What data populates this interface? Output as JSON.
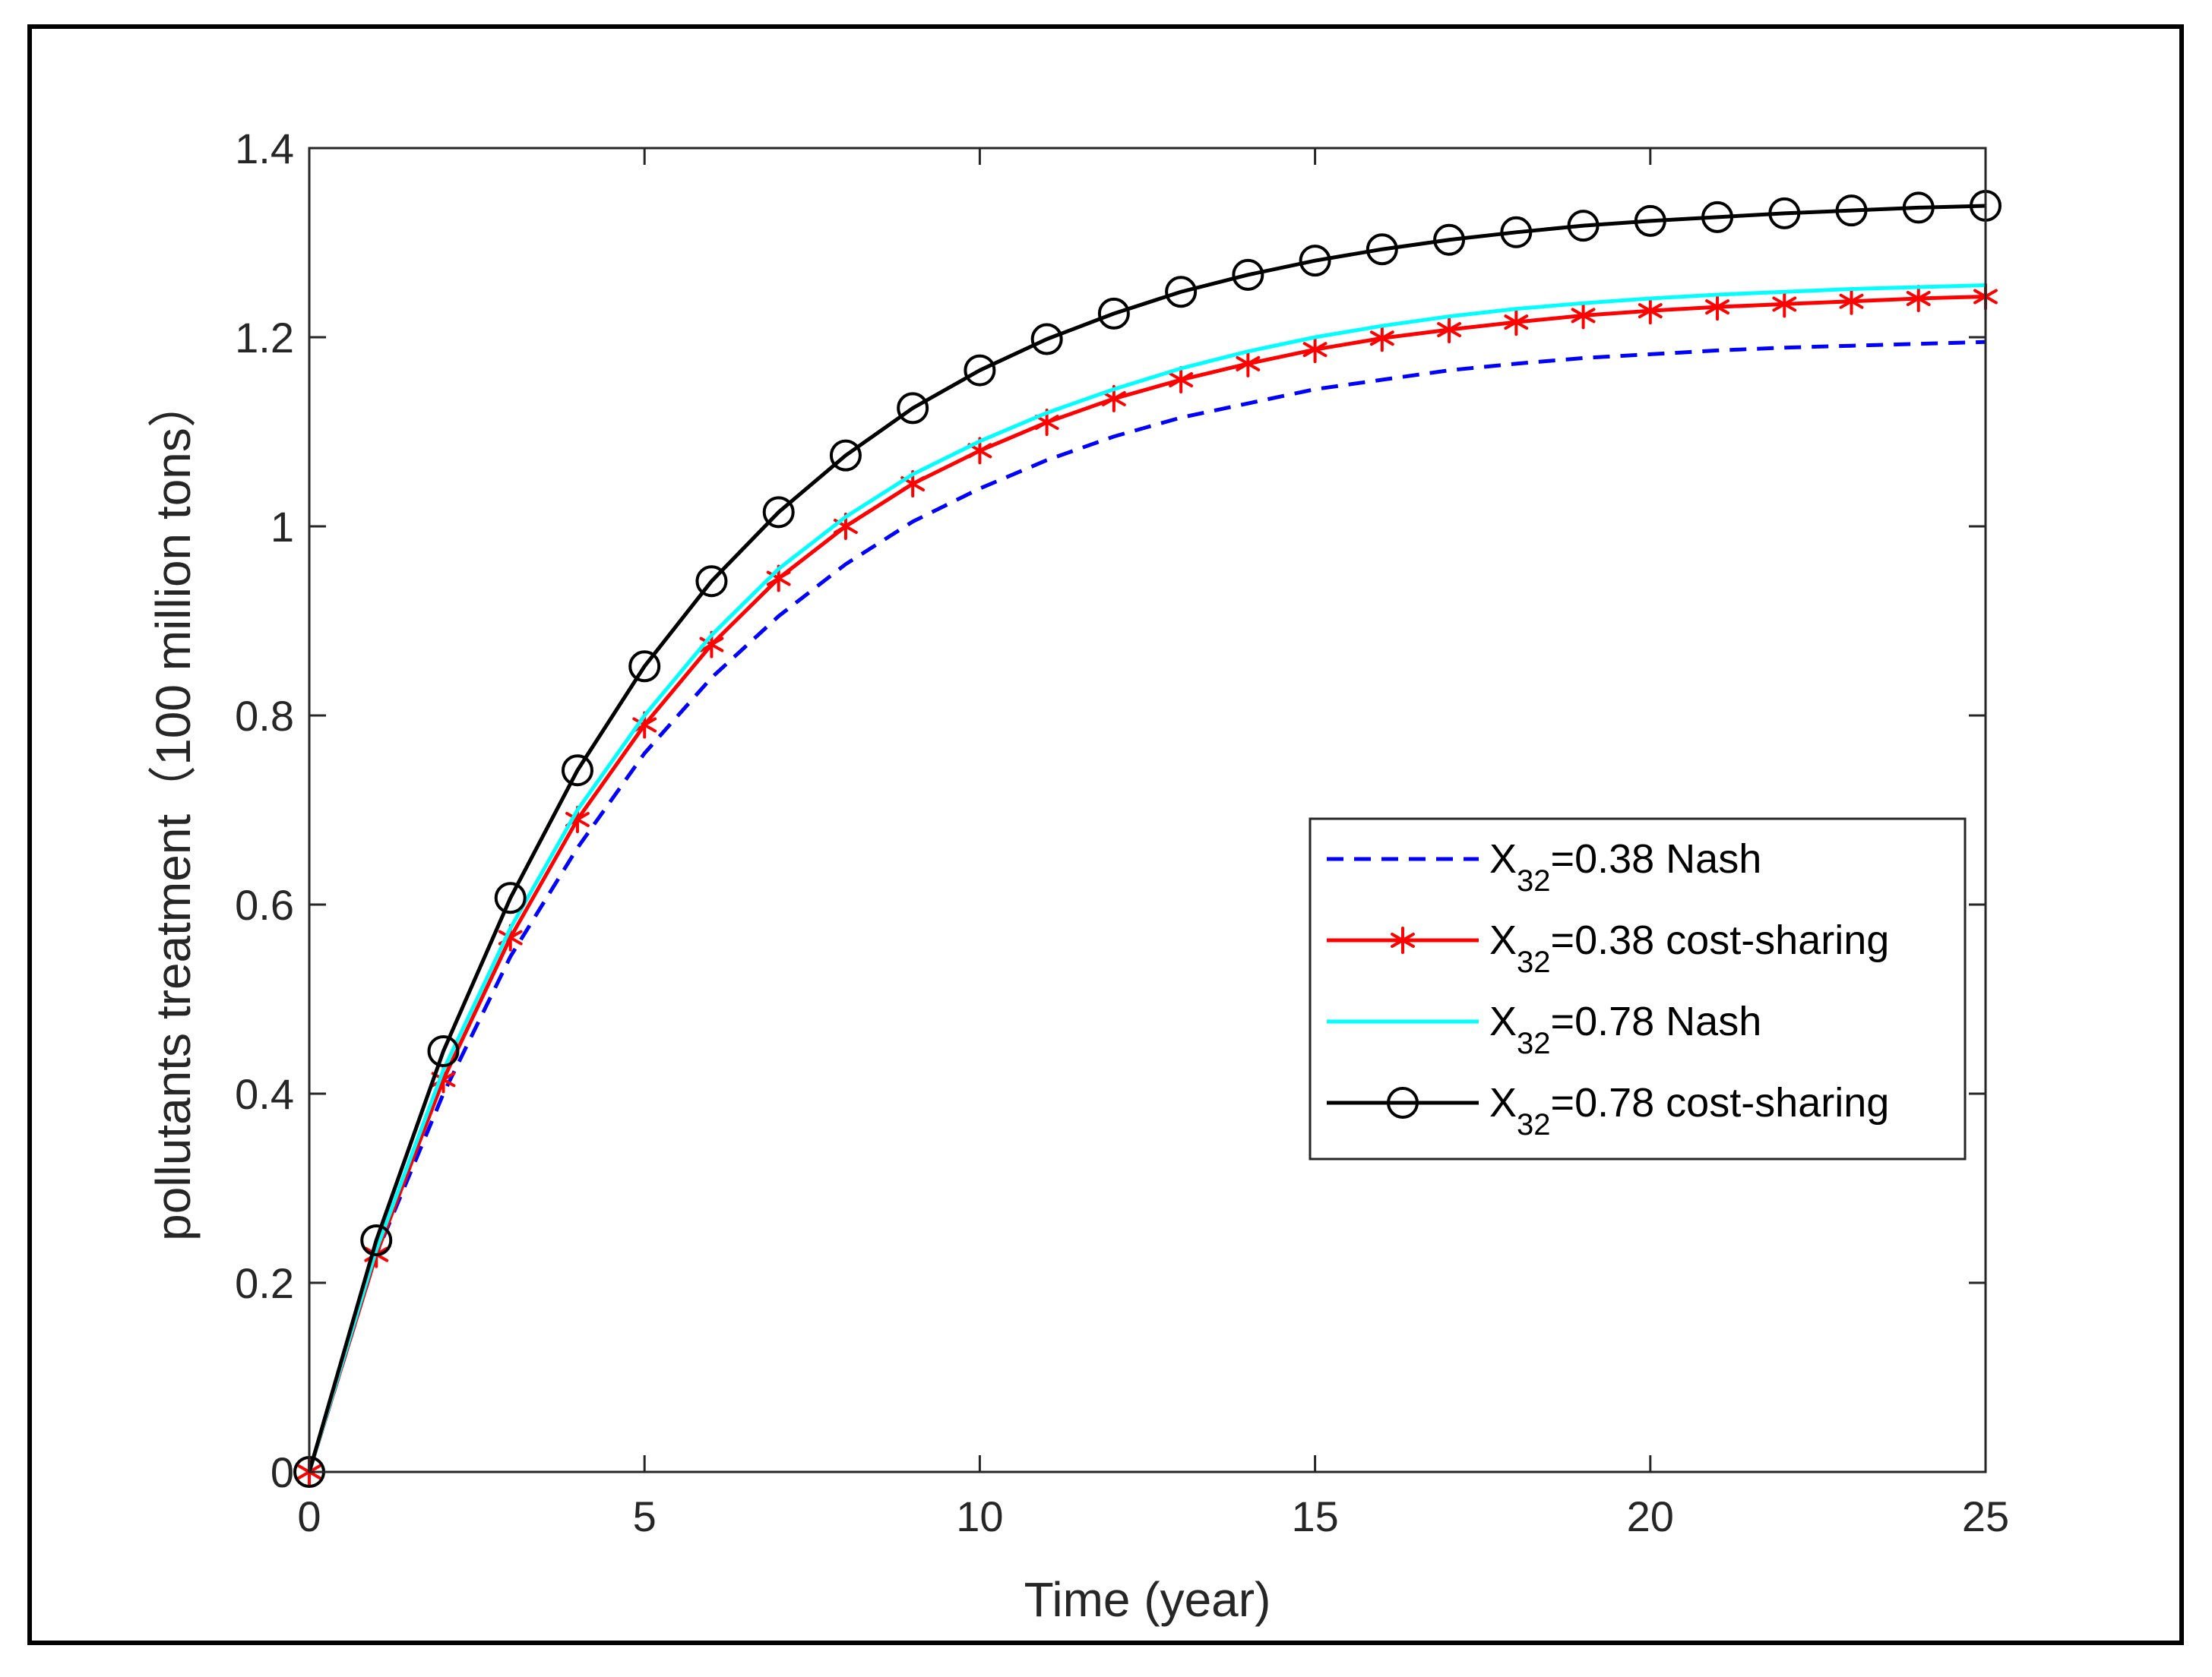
{
  "chart_data": {
    "type": "line",
    "title": "",
    "xlabel": "Time (year)",
    "ylabel": "pollutants treatment（100 million tons）",
    "xlim": [
      0,
      25
    ],
    "ylim": [
      0,
      1.4
    ],
    "grid": false,
    "legend_position": "right",
    "x_ticks": [
      {
        "value": 0,
        "label": "0"
      },
      {
        "value": 5,
        "label": "5"
      },
      {
        "value": 10,
        "label": "10"
      },
      {
        "value": 15,
        "label": "15"
      },
      {
        "value": 20,
        "label": "20"
      },
      {
        "value": 25,
        "label": "25"
      }
    ],
    "y_ticks": [
      {
        "value": 0,
        "label": "0"
      },
      {
        "value": 0.2,
        "label": "0.2"
      },
      {
        "value": 0.4,
        "label": "0.4"
      },
      {
        "value": 0.6,
        "label": "0.6"
      },
      {
        "value": 0.8,
        "label": "0.8"
      },
      {
        "value": 1.0,
        "label": "1"
      },
      {
        "value": 1.2,
        "label": "1.2"
      },
      {
        "value": 1.4,
        "label": "1.4"
      }
    ],
    "x": [
      0,
      1,
      2,
      3,
      4,
      5,
      6,
      7,
      8,
      9,
      10,
      11,
      12,
      13,
      14,
      15,
      16,
      17,
      18,
      19,
      20,
      21,
      22,
      23,
      24,
      25
    ],
    "series": [
      {
        "name": "X32=0.38 Nash",
        "label_main": "X",
        "label_sub": "32",
        "label_rest": "=0.38 Nash",
        "color": "#0000ff",
        "style": "dashed",
        "marker": "none",
        "values": [
          0,
          0.23,
          0.4,
          0.545,
          0.66,
          0.76,
          0.84,
          0.905,
          0.96,
          1.005,
          1.04,
          1.07,
          1.095,
          1.115,
          1.13,
          1.145,
          1.155,
          1.165,
          1.172,
          1.178,
          1.182,
          1.186,
          1.189,
          1.191,
          1.193,
          1.195
        ]
      },
      {
        "name": "X32=0.38 cost-sharing",
        "label_main": "X",
        "label_sub": "32",
        "label_rest": "=0.38 cost-sharing",
        "color": "#ff0000",
        "style": "solid",
        "marker": "asterisk",
        "values": [
          0,
          0.23,
          0.415,
          0.565,
          0.69,
          0.79,
          0.875,
          0.945,
          1.0,
          1.045,
          1.08,
          1.11,
          1.135,
          1.155,
          1.172,
          1.187,
          1.199,
          1.208,
          1.216,
          1.223,
          1.228,
          1.232,
          1.235,
          1.238,
          1.241,
          1.243
        ]
      },
      {
        "name": "X32=0.78 Nash",
        "label_main": "X",
        "label_sub": "32",
        "label_rest": "=0.78 Nash",
        "color": "#00ffff",
        "style": "solid",
        "marker": "none",
        "values": [
          0,
          0.235,
          0.425,
          0.575,
          0.7,
          0.8,
          0.885,
          0.955,
          1.01,
          1.055,
          1.09,
          1.12,
          1.145,
          1.167,
          1.185,
          1.2,
          1.212,
          1.222,
          1.23,
          1.236,
          1.241,
          1.245,
          1.248,
          1.251,
          1.253,
          1.255
        ]
      },
      {
        "name": "X32=0.78 cost-sharing",
        "label_main": "X",
        "label_sub": "32",
        "label_rest": "=0.78 cost-sharing",
        "color": "#000000",
        "style": "solid",
        "marker": "circle",
        "values": [
          0,
          0.245,
          0.445,
          0.607,
          0.742,
          0.852,
          0.942,
          1.015,
          1.075,
          1.125,
          1.165,
          1.198,
          1.225,
          1.248,
          1.266,
          1.281,
          1.293,
          1.303,
          1.311,
          1.318,
          1.323,
          1.327,
          1.331,
          1.334,
          1.337,
          1.339
        ]
      }
    ]
  }
}
